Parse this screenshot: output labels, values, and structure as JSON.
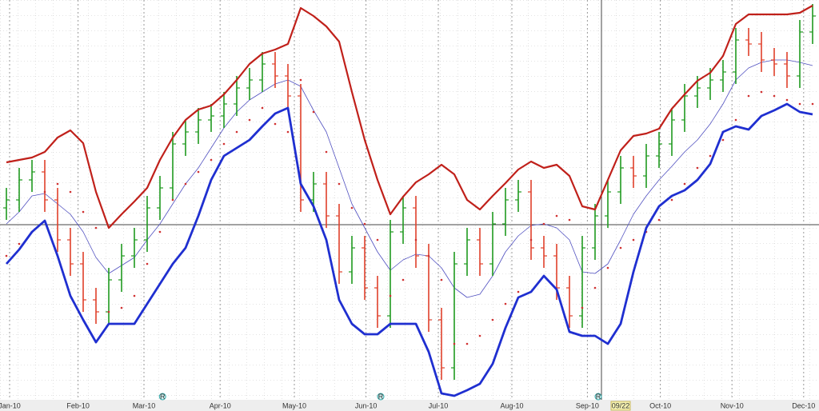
{
  "chart_data": {
    "type": "ohlc",
    "ylim": [
      0,
      100
    ],
    "xlim": [
      0,
      64
    ],
    "up_color": "#1f9a1f",
    "down_color": "#e0402a",
    "xticks": [
      {
        "value": 0.75,
        "label": "Jan-10"
      },
      {
        "value": 6.1,
        "label": "Feb-10"
      },
      {
        "value": 11.25,
        "label": "Mar-10"
      },
      {
        "value": 17.2,
        "label": "Apr-10"
      },
      {
        "value": 23,
        "label": "May-10"
      },
      {
        "value": 28.6,
        "label": "Jun-10"
      },
      {
        "value": 34.25,
        "label": "Jul-10"
      },
      {
        "value": 40,
        "label": "Aug-10"
      },
      {
        "value": 45.9,
        "label": "Sep-10"
      },
      {
        "value": 51.6,
        "label": "Oct-10"
      },
      {
        "value": 57.2,
        "label": "Nov-10"
      },
      {
        "value": 62.8,
        "label": "Dec-10"
      }
    ],
    "events": [
      {
        "value": 12.7,
        "label": "R"
      },
      {
        "value": 29.75,
        "label": "R"
      },
      {
        "value": 46.75,
        "label": "R"
      }
    ],
    "cursor": {
      "value": 47,
      "label": "09/22"
    },
    "open": [
      48,
      50,
      55,
      57,
      50,
      40,
      34,
      25,
      22,
      30,
      36,
      40,
      48,
      53,
      64,
      67,
      70,
      71,
      74,
      78,
      80,
      84,
      81,
      76,
      50,
      54,
      46,
      32,
      38,
      28,
      21,
      42,
      48,
      36,
      20,
      8,
      34,
      40,
      34,
      44,
      50,
      52,
      38,
      36,
      28,
      21,
      38,
      46,
      52,
      58,
      56,
      61,
      64,
      70,
      76,
      78,
      80,
      82,
      90,
      89,
      85,
      84,
      81,
      92
    ],
    "high": [
      53,
      58,
      60,
      60,
      53,
      43,
      37,
      28,
      33,
      39,
      43,
      51,
      56,
      67,
      70,
      73,
      74,
      77,
      81,
      83,
      87,
      87,
      84,
      79,
      57,
      57,
      49,
      41,
      41,
      31,
      45,
      51,
      51,
      39,
      23,
      37,
      43,
      43,
      47,
      53,
      55,
      55,
      41,
      39,
      31,
      41,
      49,
      55,
      61,
      61,
      64,
      67,
      73,
      79,
      81,
      83,
      85,
      93,
      93,
      92,
      88,
      87,
      95,
      99
    ],
    "low": [
      45,
      47,
      52,
      47,
      37,
      31,
      22,
      19,
      19,
      27,
      33,
      37,
      45,
      50,
      61,
      64,
      67,
      68,
      71,
      75,
      77,
      78,
      73,
      47,
      47,
      43,
      29,
      29,
      25,
      18,
      18,
      39,
      33,
      17,
      5,
      5,
      31,
      31,
      31,
      41,
      47,
      35,
      33,
      25,
      18,
      18,
      35,
      43,
      49,
      53,
      53,
      58,
      61,
      67,
      73,
      75,
      77,
      79,
      86,
      82,
      81,
      78,
      78,
      89
    ],
    "close": [
      50,
      55,
      57,
      50,
      40,
      34,
      25,
      22,
      30,
      36,
      40,
      48,
      53,
      64,
      67,
      70,
      71,
      74,
      78,
      80,
      84,
      81,
      76,
      50,
      54,
      46,
      32,
      38,
      28,
      21,
      42,
      48,
      36,
      20,
      8,
      34,
      40,
      34,
      44,
      50,
      52,
      38,
      36,
      28,
      21,
      38,
      46,
      52,
      58,
      56,
      61,
      64,
      70,
      76,
      78,
      80,
      82,
      90,
      89,
      85,
      84,
      81,
      92,
      96
    ],
    "upper_band": {
      "color": "#c0201a",
      "values": [
        59.4,
        60,
        60.6,
        62,
        65.6,
        67.4,
        64.2,
        52,
        43,
        46.4,
        49.6,
        53,
        60,
        65.6,
        70,
        72.6,
        73.6,
        76.4,
        80,
        84,
        86.6,
        87.6,
        89,
        98,
        96,
        93.4,
        89.6,
        77,
        65,
        55,
        46.4,
        50.8,
        54.4,
        56.4,
        58.8,
        56.4,
        50,
        47.6,
        51,
        54.2,
        57.6,
        59.6,
        58,
        58.8,
        56,
        48.4,
        47.6,
        55,
        62.4,
        66,
        66.6,
        67.8,
        72.8,
        76.4,
        79.8,
        81.8,
        86,
        94,
        96.4,
        96.4,
        96.4,
        96.4,
        96.8,
        98.6
      ]
    },
    "middle_band": {
      "color": "#5050c0",
      "values": [
        44,
        47,
        51,
        51.6,
        49,
        46.4,
        42,
        35.6,
        31.6,
        33.6,
        35.6,
        40,
        44,
        49,
        54,
        58,
        63,
        68,
        72,
        75,
        77,
        79,
        80,
        78.4,
        72.4,
        67,
        58,
        49,
        43,
        37,
        32.4,
        35,
        36.4,
        36,
        33,
        28,
        25.6,
        26.4,
        31,
        37,
        41,
        43.6,
        44,
        43,
        40,
        32,
        31.6,
        34,
        40,
        46.4,
        51,
        55,
        58.4,
        62,
        65,
        69,
        74,
        80,
        83,
        84.4,
        85,
        85,
        84.4,
        83.6
      ]
    },
    "lower_band": {
      "color": "#1f2fd0",
      "values": [
        34,
        37.6,
        42,
        44.8,
        36,
        26,
        20,
        14.4,
        19,
        19,
        19,
        24,
        29,
        34,
        38,
        46,
        55,
        61,
        63,
        65,
        68.4,
        71.6,
        73,
        54,
        48.4,
        40,
        25,
        19,
        16.4,
        16.4,
        19,
        19,
        19,
        12,
        1.6,
        1,
        2.4,
        4,
        9,
        18,
        25.6,
        27,
        31,
        27.6,
        17,
        16,
        16,
        14,
        19,
        32,
        43,
        48.4,
        51,
        52.4,
        55,
        59,
        67,
        68.4,
        67.6,
        71,
        72.4,
        74,
        72,
        71.4
      ]
    },
    "sar": {
      "color": "#d03030",
      "values": [
        36,
        39,
        42,
        52,
        54,
        52,
        47,
        43,
        22,
        23,
        26,
        34,
        42,
        50,
        54,
        57,
        60,
        64,
        67,
        70,
        73,
        69,
        67,
        80,
        72,
        62,
        54,
        48,
        44,
        40,
        26,
        30,
        40,
        36,
        30,
        14,
        14,
        16,
        20,
        24,
        27,
        40,
        44,
        46,
        45,
        23,
        28,
        33,
        38,
        40,
        42,
        45,
        50,
        54,
        58,
        61,
        65,
        70,
        76,
        77,
        76,
        75,
        74,
        74
      ]
    }
  }
}
